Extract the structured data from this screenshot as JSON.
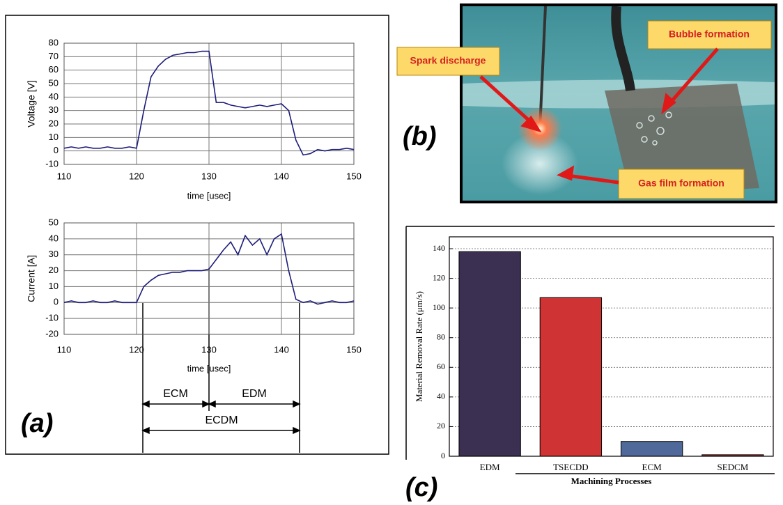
{
  "chart_data": [
    {
      "type": "line",
      "xlabel": "time [usec]",
      "ylabel": "Voltage [V]",
      "color": "#1c1c7a",
      "x": [
        110,
        111,
        112,
        113,
        114,
        115,
        116,
        117,
        118,
        119,
        120,
        121,
        122,
        123,
        124,
        125,
        126,
        127,
        128,
        129,
        130,
        131,
        132,
        133,
        134,
        135,
        136,
        137,
        138,
        139,
        140,
        141,
        142,
        143,
        144,
        145,
        146,
        147,
        148,
        149,
        150
      ],
      "values": [
        2,
        3,
        2,
        3,
        2,
        2,
        3,
        2,
        2,
        3,
        2,
        30,
        55,
        63,
        68,
        71,
        72,
        73,
        73,
        74,
        74,
        36,
        36,
        34,
        33,
        32,
        33,
        34,
        33,
        34,
        35,
        30,
        8,
        -3,
        -2,
        1,
        0,
        1,
        1,
        2,
        1
      ],
      "xlim": [
        110,
        150
      ],
      "xticks": [
        110,
        120,
        130,
        140,
        150
      ],
      "ylim": [
        -10,
        80
      ],
      "yticks": [
        -10,
        0,
        10,
        20,
        30,
        40,
        50,
        60,
        70,
        80
      ],
      "grid": true
    },
    {
      "type": "line",
      "xlabel": "time [usec]",
      "ylabel": "Current [A]",
      "color": "#1c1c7a",
      "x": [
        110,
        111,
        112,
        113,
        114,
        115,
        116,
        117,
        118,
        119,
        120,
        121,
        122,
        123,
        124,
        125,
        126,
        127,
        128,
        129,
        130,
        131,
        132,
        133,
        134,
        135,
        136,
        137,
        138,
        139,
        140,
        141,
        142,
        143,
        144,
        145,
        146,
        147,
        148,
        149,
        150
      ],
      "values": [
        0,
        1,
        0,
        0,
        1,
        0,
        0,
        1,
        0,
        0,
        0,
        10,
        14,
        17,
        18,
        19,
        19,
        20,
        20,
        20,
        21,
        27,
        33,
        38,
        30,
        42,
        36,
        40,
        30,
        40,
        43,
        20,
        2,
        0,
        1,
        -1,
        0,
        1,
        0,
        0,
        1
      ],
      "xlim": [
        110,
        150
      ],
      "xticks": [
        110,
        120,
        130,
        140,
        150
      ],
      "ylim": [
        -20,
        50
      ],
      "yticks": [
        -20,
        -10,
        0,
        10,
        20,
        30,
        40,
        50
      ],
      "grid": true,
      "annotations": [
        "ECM",
        "EDM",
        "ECDM"
      ]
    },
    {
      "type": "bar",
      "xlabel": "Machining Processes",
      "ylabel": "Material Removal Rate (μm/s)",
      "categories": [
        "EDM",
        "TSECDD",
        "ECM",
        "SEDCM"
      ],
      "values": [
        138,
        107,
        10,
        1
      ],
      "colors": [
        "#3b2f52",
        "#d03333",
        "#4f6a9a",
        "#b03030"
      ],
      "ylim": [
        0,
        148
      ],
      "yticks": [
        0,
        20,
        40,
        60,
        80,
        100,
        120,
        140
      ],
      "grid": true
    }
  ],
  "photo": {
    "labels": [
      "Spark discharge",
      "Bubble formation",
      "Gas film formation"
    ]
  },
  "panel_labels": [
    "(a)",
    "(b)",
    "(c)"
  ]
}
